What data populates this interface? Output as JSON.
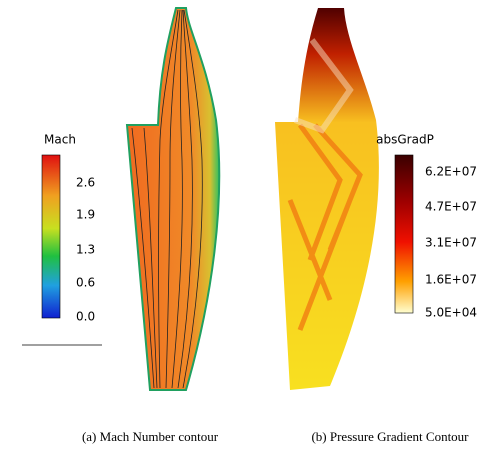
{
  "panels": [
    {
      "colorbar": {
        "title": "Mach",
        "labels": [
          "2.6",
          "1.9",
          "1.3",
          "0.6",
          "0.0"
        ]
      },
      "caption": "(a) Mach Number contour"
    },
    {
      "colorbar": {
        "title": "absGradP",
        "labels": [
          "6.2E+07",
          "4.7E+07",
          "3.1E+07",
          "1.6E+07",
          "5.0E+04"
        ]
      },
      "caption": "(b) Pressure Gradient Contour"
    }
  ]
}
